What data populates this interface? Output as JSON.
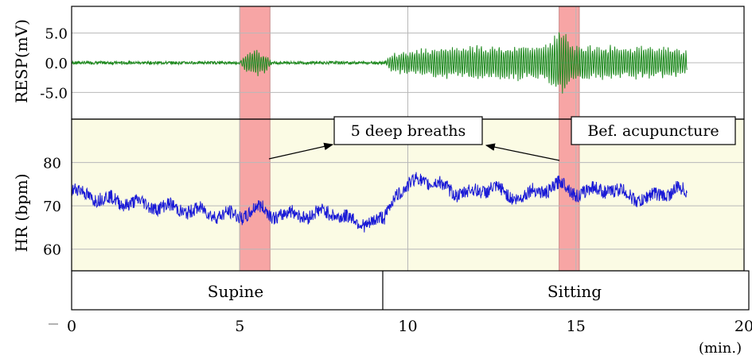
{
  "chart_data": [
    {
      "type": "line",
      "panel": "respiration",
      "ylabel": "RESP(mV)",
      "ytick_labels": [
        "5.0",
        "0.0",
        "-5.0"
      ],
      "yticks": [
        5.0,
        0.0,
        -5.0
      ],
      "ylim": [
        -9.5,
        9.5
      ],
      "xlim": [
        0,
        20
      ],
      "grid": true,
      "series": [
        {
          "color": "#1f8a1f",
          "x": [
            0,
            2,
            4,
            5,
            5.2,
            5.5,
            5.8,
            6,
            8,
            9.3,
            9.5,
            10,
            11,
            12,
            13,
            14,
            14.5,
            14.8,
            15,
            16,
            17,
            18,
            18.3
          ],
          "y": [
            0,
            0,
            0,
            0,
            1.5,
            2.5,
            1.5,
            0,
            0,
            0,
            1.5,
            2.0,
            2.8,
            3.0,
            3.0,
            3.0,
            5.5,
            4.5,
            3.0,
            3.0,
            2.8,
            2.5,
            2.0
          ]
        }
      ],
      "highlight_bands": [
        [
          5.0,
          5.9
        ],
        [
          14.5,
          15.1
        ]
      ]
    },
    {
      "type": "line",
      "panel": "heart_rate",
      "ylabel": "HR (bpm)",
      "ytick_labels": [
        "80",
        "70",
        "60"
      ],
      "yticks": [
        80,
        70,
        60
      ],
      "ylim": [
        55,
        90
      ],
      "xlabel": "(min.)",
      "xticks": [
        0,
        5,
        10,
        15,
        20
      ],
      "xtick_labels": [
        "0",
        "5",
        "10",
        "15",
        "20"
      ],
      "xlim": [
        0,
        20
      ],
      "grid": true,
      "background": "#fbfbe4",
      "series": [
        {
          "color": "#1a1ad6",
          "x": [
            0,
            1,
            2,
            3,
            4,
            5,
            5.5,
            6,
            7,
            7.8,
            8.5,
            9,
            9.3,
            9.6,
            10,
            10.3,
            11,
            11.5,
            12,
            12.5,
            13,
            13.5,
            14,
            14.5,
            15,
            15.5,
            16,
            16.5,
            17,
            17.5,
            18,
            18.3
          ],
          "y": [
            73.5,
            71.5,
            70.5,
            69.5,
            68.5,
            67.5,
            69.5,
            68,
            68,
            68.5,
            66,
            66.5,
            66.5,
            73,
            74,
            76.5,
            74.5,
            73,
            73,
            74.5,
            72,
            72.5,
            73.5,
            75,
            73,
            73.5,
            74,
            72.5,
            71.5,
            72.5,
            74,
            72.5
          ]
        }
      ],
      "highlight_bands": [
        [
          5.0,
          5.9
        ],
        [
          14.5,
          15.1
        ]
      ],
      "annotations": [
        {
          "text": "5 deep breaths"
        },
        {
          "text": "Bef. acupuncture"
        }
      ]
    }
  ],
  "posture": {
    "supine": "Supine",
    "sitting": "Sitting"
  },
  "colors": {
    "band": "#f7a0a0",
    "resp_line": "#1f8a1f",
    "hr_line": "#1a1ad6",
    "hr_background": "#fbfbe4"
  }
}
